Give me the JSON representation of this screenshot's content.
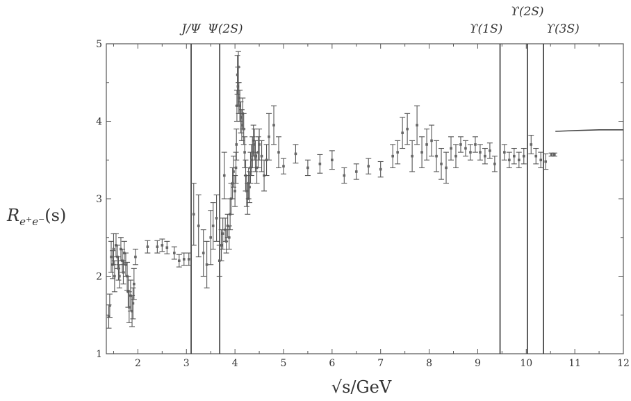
{
  "chart_data": {
    "type": "scatter",
    "xlabel": "√s/GeV",
    "ylabel": "R_{e+e-}(s)",
    "xlim": [
      1.35,
      12
    ],
    "ylim": [
      1,
      5
    ],
    "x_ticks": [
      2,
      3,
      4,
      5,
      6,
      7,
      8,
      9,
      10,
      11,
      12
    ],
    "y_ticks": [
      1,
      2,
      3,
      4,
      5
    ],
    "grid": false,
    "resonances": [
      {
        "label": "J/Ψ",
        "x": 3.097
      },
      {
        "label": "Ψ(2S)",
        "x": 3.686
      },
      {
        "label": "ϒ(1S)",
        "x": 9.46
      },
      {
        "label": "ϒ(2S)",
        "x": 10.023
      },
      {
        "label": "ϒ(3S)",
        "x": 10.355
      }
    ],
    "series": [
      {
        "points": [
          [
            1.4,
            1.48,
            0.15
          ],
          [
            1.42,
            1.62,
            0.15
          ],
          [
            1.45,
            2.25,
            0.2
          ],
          [
            1.48,
            2.15,
            0.18
          ],
          [
            1.5,
            2.35,
            0.2
          ],
          [
            1.52,
            2.0,
            0.2
          ],
          [
            1.55,
            2.4,
            0.15
          ],
          [
            1.58,
            2.25,
            0.15
          ],
          [
            1.6,
            2.1,
            0.15
          ],
          [
            1.62,
            2.0,
            0.15
          ],
          [
            1.65,
            2.35,
            0.15
          ],
          [
            1.68,
            2.2,
            0.15
          ],
          [
            1.7,
            2.05,
            0.15
          ],
          [
            1.72,
            2.3,
            0.15
          ],
          [
            1.75,
            2.15,
            0.15
          ],
          [
            1.78,
            2.0,
            0.18
          ],
          [
            1.8,
            1.8,
            0.2
          ],
          [
            1.82,
            1.6,
            0.2
          ],
          [
            1.85,
            1.75,
            0.2
          ],
          [
            1.88,
            1.55,
            0.2
          ],
          [
            1.9,
            1.65,
            0.2
          ],
          [
            1.92,
            1.9,
            0.2
          ],
          [
            1.95,
            2.25,
            0.1
          ],
          [
            2.2,
            2.38,
            0.08
          ],
          [
            2.4,
            2.38,
            0.08
          ],
          [
            2.5,
            2.4,
            0.08
          ],
          [
            2.6,
            2.37,
            0.08
          ],
          [
            2.75,
            2.3,
            0.08
          ],
          [
            2.85,
            2.2,
            0.08
          ],
          [
            2.95,
            2.22,
            0.08
          ],
          [
            3.05,
            2.22,
            0.08
          ],
          [
            3.15,
            2.8,
            0.4
          ],
          [
            3.25,
            2.65,
            0.4
          ],
          [
            3.35,
            2.3,
            0.3
          ],
          [
            3.42,
            2.15,
            0.3
          ],
          [
            3.5,
            2.5,
            0.35
          ],
          [
            3.55,
            2.65,
            0.3
          ],
          [
            3.62,
            2.75,
            0.3
          ],
          [
            3.68,
            2.2,
            0.2
          ],
          [
            3.72,
            2.4,
            0.2
          ],
          [
            3.75,
            2.55,
            0.2
          ],
          [
            3.78,
            3.3,
            0.3
          ],
          [
            3.8,
            2.6,
            0.15
          ],
          [
            3.82,
            2.45,
            0.15
          ],
          [
            3.85,
            2.65,
            0.15
          ],
          [
            3.88,
            2.5,
            0.15
          ],
          [
            3.9,
            2.8,
            0.2
          ],
          [
            3.92,
            3.0,
            0.2
          ],
          [
            3.95,
            3.2,
            0.2
          ],
          [
            3.97,
            3.35,
            0.2
          ],
          [
            4.0,
            3.1,
            0.2
          ],
          [
            4.02,
            3.4,
            0.2
          ],
          [
            4.03,
            3.7,
            0.2
          ],
          [
            4.04,
            4.2,
            0.2
          ],
          [
            4.05,
            4.6,
            0.25
          ],
          [
            4.06,
            4.45,
            0.25
          ],
          [
            4.07,
            4.7,
            0.2
          ],
          [
            4.08,
            4.3,
            0.2
          ],
          [
            4.1,
            4.2,
            0.2
          ],
          [
            4.12,
            4.05,
            0.2
          ],
          [
            4.14,
            3.95,
            0.2
          ],
          [
            4.16,
            4.1,
            0.2
          ],
          [
            4.18,
            3.9,
            0.2
          ],
          [
            4.2,
            3.6,
            0.2
          ],
          [
            4.22,
            3.3,
            0.2
          ],
          [
            4.24,
            3.1,
            0.2
          ],
          [
            4.26,
            3.0,
            0.2
          ],
          [
            4.28,
            3.2,
            0.2
          ],
          [
            4.3,
            3.15,
            0.2
          ],
          [
            4.32,
            3.4,
            0.2
          ],
          [
            4.34,
            3.5,
            0.2
          ],
          [
            4.36,
            3.6,
            0.2
          ],
          [
            4.38,
            3.75,
            0.2
          ],
          [
            4.4,
            3.7,
            0.2
          ],
          [
            4.42,
            3.55,
            0.2
          ],
          [
            4.45,
            3.4,
            0.2
          ],
          [
            4.48,
            3.6,
            0.2
          ],
          [
            4.5,
            3.7,
            0.2
          ],
          [
            4.55,
            3.55,
            0.2
          ],
          [
            4.6,
            3.3,
            0.2
          ],
          [
            4.65,
            3.5,
            0.2
          ],
          [
            4.7,
            3.8,
            0.3
          ],
          [
            4.8,
            3.95,
            0.25
          ],
          [
            4.9,
            3.6,
            0.2
          ],
          [
            5.0,
            3.42,
            0.1
          ],
          [
            5.25,
            3.58,
            0.12
          ],
          [
            5.5,
            3.4,
            0.1
          ],
          [
            5.75,
            3.45,
            0.12
          ],
          [
            6.0,
            3.5,
            0.12
          ],
          [
            6.25,
            3.3,
            0.1
          ],
          [
            6.5,
            3.35,
            0.1
          ],
          [
            6.75,
            3.42,
            0.1
          ],
          [
            7.0,
            3.38,
            0.1
          ],
          [
            7.25,
            3.55,
            0.15
          ],
          [
            7.35,
            3.6,
            0.15
          ],
          [
            7.45,
            3.85,
            0.2
          ],
          [
            7.55,
            3.9,
            0.2
          ],
          [
            7.65,
            3.55,
            0.2
          ],
          [
            7.75,
            3.95,
            0.25
          ],
          [
            7.85,
            3.6,
            0.2
          ],
          [
            7.95,
            3.7,
            0.2
          ],
          [
            8.05,
            3.75,
            0.2
          ],
          [
            8.15,
            3.55,
            0.2
          ],
          [
            8.25,
            3.45,
            0.2
          ],
          [
            8.35,
            3.4,
            0.2
          ],
          [
            8.45,
            3.65,
            0.15
          ],
          [
            8.55,
            3.55,
            0.15
          ],
          [
            8.65,
            3.7,
            0.1
          ],
          [
            8.75,
            3.65,
            0.1
          ],
          [
            8.85,
            3.6,
            0.1
          ],
          [
            8.95,
            3.7,
            0.1
          ],
          [
            9.05,
            3.6,
            0.1
          ],
          [
            9.15,
            3.55,
            0.1
          ],
          [
            9.25,
            3.62,
            0.1
          ],
          [
            9.35,
            3.45,
            0.1
          ],
          [
            9.55,
            3.6,
            0.1
          ],
          [
            9.65,
            3.5,
            0.1
          ],
          [
            9.75,
            3.55,
            0.1
          ],
          [
            9.85,
            3.5,
            0.1
          ],
          [
            9.95,
            3.55,
            0.1
          ],
          [
            10.1,
            3.7,
            0.12
          ],
          [
            10.2,
            3.55,
            0.1
          ],
          [
            10.3,
            3.5,
            0.1
          ],
          [
            10.4,
            3.48,
            0.1
          ],
          [
            10.52,
            3.57,
            0.02
          ],
          [
            10.58,
            3.57,
            0.02
          ]
        ]
      },
      {
        "type": "line",
        "x": [
          10.6,
          11.0,
          11.5,
          12.0
        ],
        "y": [
          3.87,
          3.88,
          3.89,
          3.89
        ]
      }
    ]
  }
}
